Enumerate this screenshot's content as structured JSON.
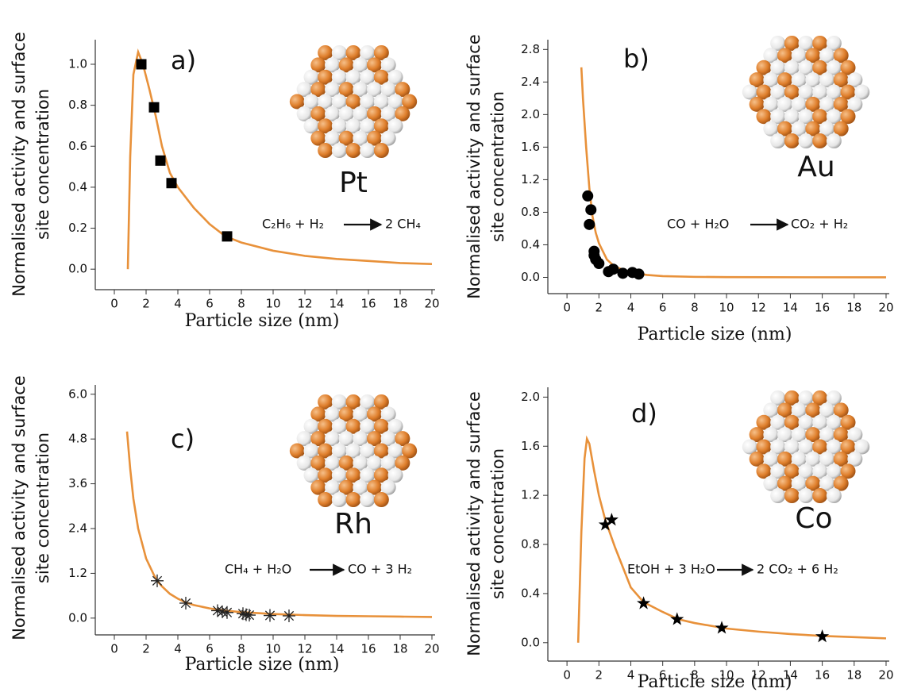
{
  "chart_data": [
    {
      "type": "line",
      "panel_label": "a)",
      "metal": "Pt",
      "reaction": {
        "reactants": "C₂H₆ + H₂",
        "products": "2 CH₄"
      },
      "xlabel": "Particle size (nm)",
      "ylabel": [
        "Normalised activity and surface",
        "site concentration"
      ],
      "xlim": [
        -1.2,
        20.2
      ],
      "ylim": [
        -0.1,
        1.12
      ],
      "xticks": [
        0,
        2,
        4,
        6,
        8,
        10,
        12,
        14,
        16,
        18,
        20
      ],
      "yticks": [
        {
          "value": 0,
          "label": "0.0"
        },
        0.2,
        0.4,
        0.6,
        0.8,
        {
          "value": 1,
          "label": "1.0"
        }
      ],
      "curve": {
        "color": "#e8913a",
        "x": [
          0.85,
          1.0,
          1.2,
          1.5,
          1.8,
          2.2,
          2.6,
          3,
          3.5,
          4,
          5,
          6,
          7,
          8,
          10,
          12,
          14,
          16,
          18,
          20
        ],
        "values": [
          0,
          0.55,
          0.95,
          1.06,
          1.0,
          0.88,
          0.75,
          0.6,
          0.47,
          0.4,
          0.3,
          0.22,
          0.16,
          0.13,
          0.09,
          0.065,
          0.05,
          0.04,
          0.03,
          0.025
        ]
      },
      "points": {
        "marker": "square",
        "color": "#000000",
        "x": [
          1.7,
          2.5,
          2.9,
          3.6,
          7.1
        ],
        "values": [
          1.0,
          0.79,
          0.53,
          0.42,
          0.16
        ]
      }
    },
    {
      "type": "line",
      "panel_label": "b)",
      "metal": "Au",
      "reaction": {
        "reactants": "CO + H₂O",
        "products": "CO₂ + H₂"
      },
      "xlabel": "Particle size (nm)",
      "ylabel": [
        "Normalised activity and surface",
        "site concentration"
      ],
      "xlim": [
        -1.2,
        20.2
      ],
      "ylim": [
        -0.2,
        2.92
      ],
      "xticks": [
        0,
        2,
        4,
        6,
        8,
        10,
        12,
        14,
        16,
        18,
        20
      ],
      "yticks": [
        {
          "value": 0,
          "label": "0.0"
        },
        0.4,
        0.8,
        1.2,
        1.6,
        {
          "value": 2,
          "label": "2.0"
        },
        2.4,
        2.8
      ],
      "curve": {
        "color": "#e8913a",
        "x": [
          0.9,
          1.0,
          1.2,
          1.4,
          1.6,
          1.8,
          2,
          2.5,
          3,
          4,
          5,
          6,
          8,
          10,
          15,
          20
        ],
        "values": [
          2.58,
          2.2,
          1.6,
          1.1,
          0.75,
          0.55,
          0.42,
          0.22,
          0.13,
          0.06,
          0.03,
          0.015,
          0.006,
          0.003,
          0.001,
          0
        ]
      },
      "points": {
        "marker": "circle",
        "color": "#000000",
        "x": [
          1.3,
          1.5,
          1.4,
          1.7,
          1.7,
          1.8,
          2.0,
          2.6,
          2.9,
          3.5,
          4.1,
          4.5
        ],
        "values": [
          1.0,
          0.83,
          0.65,
          0.32,
          0.27,
          0.22,
          0.17,
          0.07,
          0.1,
          0.05,
          0.06,
          0.04
        ]
      }
    },
    {
      "type": "line",
      "panel_label": "c)",
      "metal": "Rh",
      "reaction": {
        "reactants": "CH₄ + H₂O",
        "products": "CO + 3 H₂"
      },
      "xlabel": "Particle size (nm)",
      "ylabel": [
        "Normalised activity and surface",
        "site concentration"
      ],
      "xlim": [
        -1.2,
        20.2
      ],
      "ylim": [
        -0.45,
        6.25
      ],
      "xticks": [
        0,
        2,
        4,
        6,
        8,
        10,
        12,
        14,
        16,
        18,
        20
      ],
      "yticks": [
        {
          "value": 0,
          "label": "0.0"
        },
        1.2,
        2.4,
        3.6,
        4.8,
        {
          "value": 6,
          "label": "6.0"
        }
      ],
      "curve": {
        "color": "#e8913a",
        "x": [
          0.8,
          1,
          1.2,
          1.5,
          2,
          2.5,
          2.7,
          3,
          3.5,
          4,
          4.5,
          5,
          6,
          7,
          8,
          10,
          12,
          14,
          16,
          18,
          20
        ],
        "values": [
          5.0,
          4.0,
          3.2,
          2.4,
          1.6,
          1.15,
          1.0,
          0.85,
          0.65,
          0.52,
          0.42,
          0.35,
          0.26,
          0.2,
          0.16,
          0.11,
          0.08,
          0.06,
          0.05,
          0.04,
          0.03
        ]
      },
      "points": {
        "marker": "asterisk",
        "color": "#222222",
        "x": [
          2.7,
          4.5,
          6.5,
          6.8,
          7.1,
          8.1,
          8.3,
          8.5,
          9.8,
          11
        ],
        "values": [
          1.0,
          0.4,
          0.2,
          0.17,
          0.15,
          0.12,
          0.09,
          0.08,
          0.07,
          0.06
        ]
      }
    },
    {
      "type": "line",
      "panel_label": "d)",
      "metal": "Co",
      "reaction": {
        "reactants": "EtOH + 3 H₂O",
        "products": "2 CO₂ + 6 H₂"
      },
      "xlabel": "Particle size (nm)",
      "ylabel": [
        "Normalised activity and surface",
        "site concentration"
      ],
      "xlim": [
        -1.2,
        20.2
      ],
      "ylim": [
        -0.15,
        2.08
      ],
      "xticks": [
        0,
        2,
        4,
        6,
        8,
        10,
        12,
        14,
        16,
        18,
        20
      ],
      "yticks": [
        {
          "value": 0,
          "label": "0.0"
        },
        0.4,
        0.8,
        1.2,
        1.6,
        {
          "value": 2,
          "label": "2.0"
        }
      ],
      "curve": {
        "color": "#e8913a",
        "x": [
          0.7,
          0.9,
          1.1,
          1.25,
          1.4,
          1.7,
          2,
          2.4,
          3,
          4,
          4.8,
          6,
          7,
          8,
          10,
          12,
          14,
          16,
          18,
          20
        ],
        "values": [
          0,
          0.9,
          1.5,
          1.66,
          1.62,
          1.4,
          1.2,
          1.0,
          0.78,
          0.45,
          0.33,
          0.25,
          0.19,
          0.16,
          0.115,
          0.09,
          0.07,
          0.055,
          0.045,
          0.035
        ]
      },
      "points": {
        "marker": "star",
        "color": "#000000",
        "x": [
          2.4,
          2.8,
          4.8,
          6.9,
          9.7,
          16
        ],
        "values": [
          0.96,
          1.0,
          0.32,
          0.19,
          0.12,
          0.05
        ]
      }
    }
  ]
}
